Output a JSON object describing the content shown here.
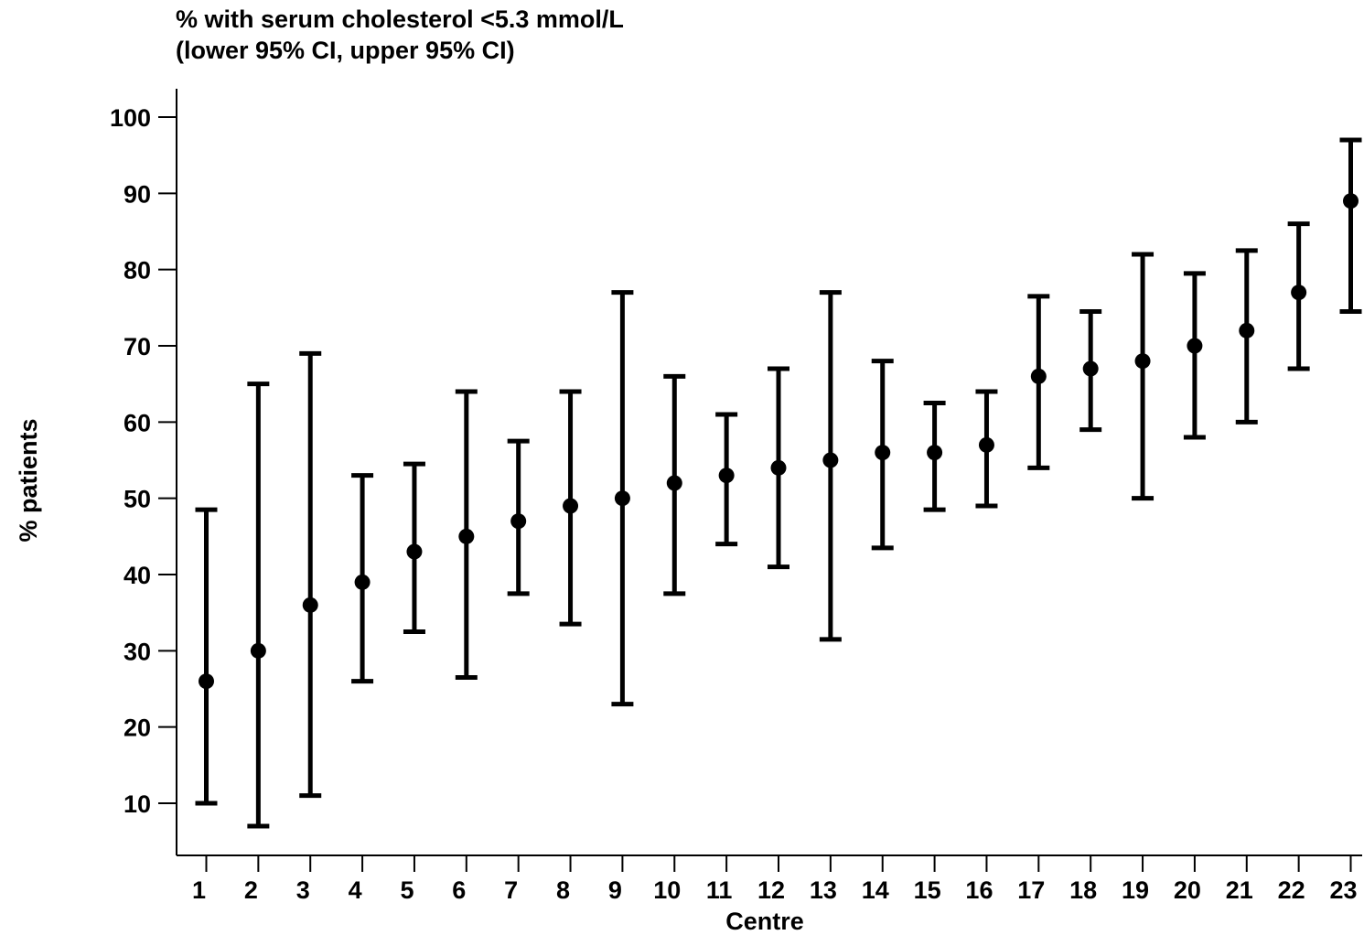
{
  "chart_data": {
    "type": "scatter",
    "title_lines": [
      "% with serum cholesterol <5.3 mmol/L",
      "(lower 95% CI, upper 95% CI)"
    ],
    "xlabel": "Centre",
    "ylabel": "% patients",
    "yticks": [
      10,
      20,
      30,
      40,
      50,
      60,
      70,
      80,
      90,
      100
    ],
    "ylim": [
      3,
      104
    ],
    "grid": false,
    "legend": "none",
    "categories": [
      "1",
      "2",
      "3",
      "4",
      "5",
      "6",
      "7",
      "8",
      "9",
      "10",
      "11",
      "12",
      "13",
      "14",
      "15",
      "16",
      "17",
      "18",
      "19",
      "20",
      "21",
      "22",
      "23"
    ],
    "values": [
      26,
      30,
      36,
      39,
      43,
      45,
      47,
      49,
      50,
      52,
      53,
      54,
      55,
      56,
      56,
      57,
      66,
      67,
      68,
      70,
      72,
      77,
      89
    ],
    "lower_ci": [
      10,
      7,
      11,
      26,
      32.5,
      26.5,
      37.5,
      33.5,
      23,
      37.5,
      44,
      41,
      31.5,
      43.5,
      48.5,
      49,
      54,
      59,
      50,
      58,
      60,
      67,
      74.5
    ],
    "upper_ci": [
      48.5,
      65,
      69,
      53,
      54.5,
      64,
      57.5,
      64,
      77,
      66,
      61,
      67,
      77,
      68,
      62.5,
      64,
      76.5,
      74.5,
      82,
      79.5,
      82.5,
      86,
      97
    ],
    "color": "#000000"
  }
}
